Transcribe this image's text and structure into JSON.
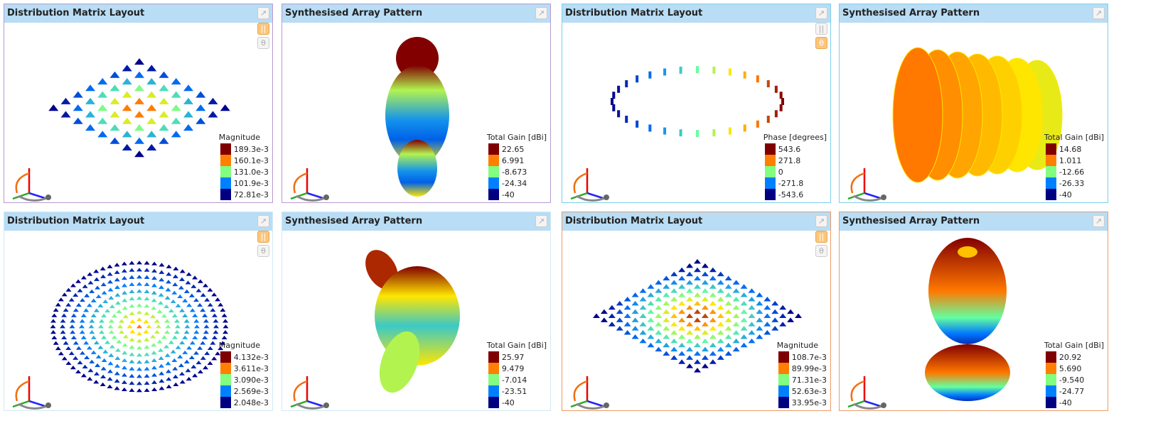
{
  "colormap": [
    "#800000",
    "#ff8000",
    "#80ff80",
    "#0080ff",
    "#000080"
  ],
  "panels": [
    {
      "title": "Distribution Matrix Layout",
      "kind": "dist",
      "layout": "diamond",
      "border": "b-purple",
      "mode": "pause",
      "legend": {
        "title": "Magnitude",
        "values": [
          "189.3e-3",
          "160.1e-3",
          "131.0e-3",
          "101.9e-3",
          "72.81e-3"
        ]
      }
    },
    {
      "title": "Synthesised Array Pattern",
      "kind": "pattern",
      "shape": "vertical",
      "border": "b-purple",
      "legend": {
        "title": "Total Gain [dBi]",
        "values": [
          "22.65",
          "6.991",
          "-8.673",
          "-24.34",
          "-40"
        ]
      }
    },
    {
      "title": "Distribution Matrix Layout",
      "kind": "dist",
      "layout": "ring",
      "border": "b-blue",
      "mode": "theta",
      "legend": {
        "title": "Phase [degrees]",
        "values": [
          "543.6",
          "271.8",
          "0",
          "-271.8",
          "-543.6"
        ]
      }
    },
    {
      "title": "Synthesised Array Pattern",
      "kind": "pattern",
      "shape": "barrel",
      "border": "b-blue",
      "legend": {
        "title": "Total Gain [dBi]",
        "values": [
          "14.68",
          "1.011",
          "-12.66",
          "-26.33",
          "-40"
        ]
      }
    },
    {
      "title": "Distribution Matrix Layout",
      "kind": "dist",
      "layout": "disc",
      "border": "b-pale",
      "mode": "pause",
      "legend": {
        "title": "Magnitude",
        "values": [
          "4.132e-3",
          "3.611e-3",
          "3.090e-3",
          "2.569e-3",
          "2.048e-3"
        ]
      }
    },
    {
      "title": "Synthesised Array Pattern",
      "kind": "pattern",
      "shape": "tilted",
      "border": "b-pale",
      "legend": {
        "title": "Total Gain [dBi]",
        "values": [
          "25.97",
          "9.479",
          "-7.014",
          "-23.51",
          "-40"
        ]
      }
    },
    {
      "title": "Distribution Matrix Layout",
      "kind": "dist",
      "layout": "diamond-dense",
      "border": "b-orange",
      "mode": "pause",
      "legend": {
        "title": "Magnitude",
        "values": [
          "108.7e-3",
          "89.99e-3",
          "71.31e-3",
          "52.63e-3",
          "33.95e-3"
        ]
      }
    },
    {
      "title": "Synthesised Array Pattern",
      "kind": "pattern",
      "shape": "cup",
      "border": "b-orange",
      "legend": {
        "title": "Total Gain [dBi]",
        "values": [
          "20.92",
          "5.690",
          "-9.540",
          "-24.77",
          "-40"
        ]
      }
    }
  ]
}
